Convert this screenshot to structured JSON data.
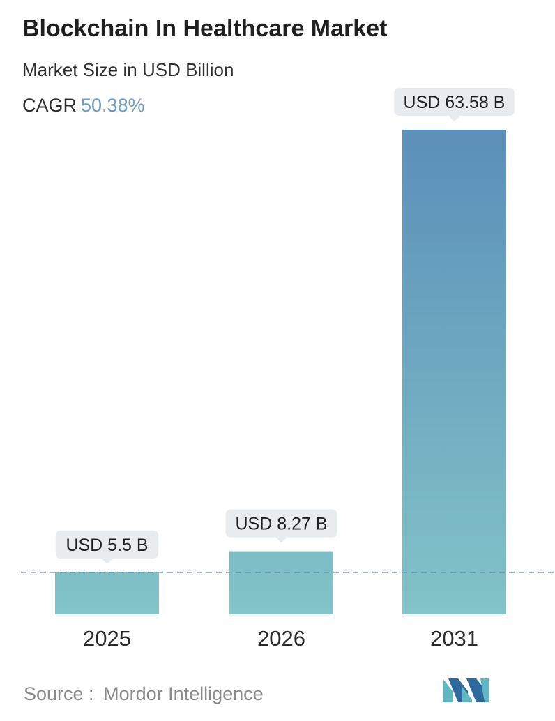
{
  "header": {
    "title": "Blockchain In Healthcare Market",
    "subtitle": "Market Size in USD Billion",
    "cagr_label": "CAGR",
    "cagr_value": "50.38%"
  },
  "footer": {
    "source_label": "Source :",
    "source_name": "Mordor Intelligence",
    "logo_icon": "mordor-intelligence-logo-icon"
  },
  "colors": {
    "bar_top": "#5b8fb9",
    "bar_bottom": "#82c4c8",
    "label_bg": "#e8ecee",
    "cagr_accent": "#6f9dbf",
    "dashed_line": "#5d8aa8",
    "logo_dark": "#2e6a9e",
    "logo_light": "#5fb7c3"
  },
  "chart_data": {
    "type": "bar",
    "categories": [
      "2025",
      "2026",
      "2031"
    ],
    "values": [
      5.5,
      8.27,
      63.58
    ],
    "data_labels": [
      "USD 5.5 B",
      "USD 8.27 B",
      "USD 63.58 B"
    ],
    "ylabel": "Market Size in USD Billion",
    "ylim": [
      0,
      65
    ],
    "grid": false,
    "axis_visible": false,
    "baseline_reference": "dashed line at first bar's value"
  }
}
